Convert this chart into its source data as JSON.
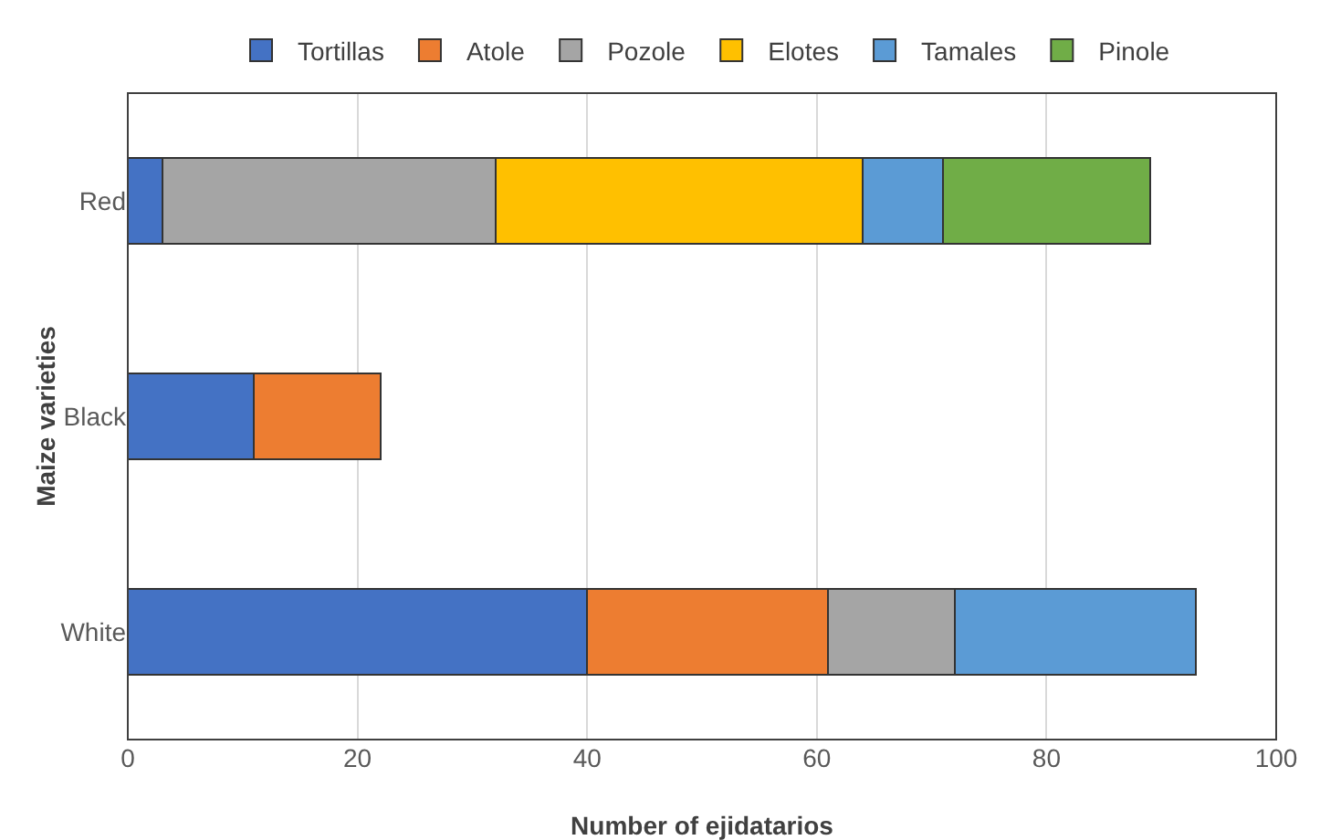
{
  "chart_data": {
    "type": "bar",
    "orientation": "horizontal",
    "stacked": true,
    "xlabel": "Number of ejidatarios",
    "ylabel": "Maize varieties",
    "categories": [
      "Red",
      "Black",
      "White"
    ],
    "series": [
      {
        "name": "Tortillas",
        "color": "#4472c4",
        "values": [
          3,
          11,
          40
        ]
      },
      {
        "name": "Atole",
        "color": "#ed7d31",
        "values": [
          null,
          11,
          21
        ]
      },
      {
        "name": "Pozole",
        "color": "#a5a5a5",
        "values": [
          29,
          null,
          11
        ]
      },
      {
        "name": "Elotes",
        "color": "#ffc000",
        "values": [
          32,
          null,
          null
        ]
      },
      {
        "name": "Tamales",
        "color": "#5b9bd5",
        "values": [
          7,
          null,
          21
        ]
      },
      {
        "name": "Pinole",
        "color": "#70ad47",
        "values": [
          18,
          null,
          null
        ]
      }
    ],
    "xlim": [
      0,
      100
    ],
    "xticks": [
      0,
      20,
      40,
      60,
      80,
      100
    ],
    "grid": "x",
    "legend": "top"
  }
}
